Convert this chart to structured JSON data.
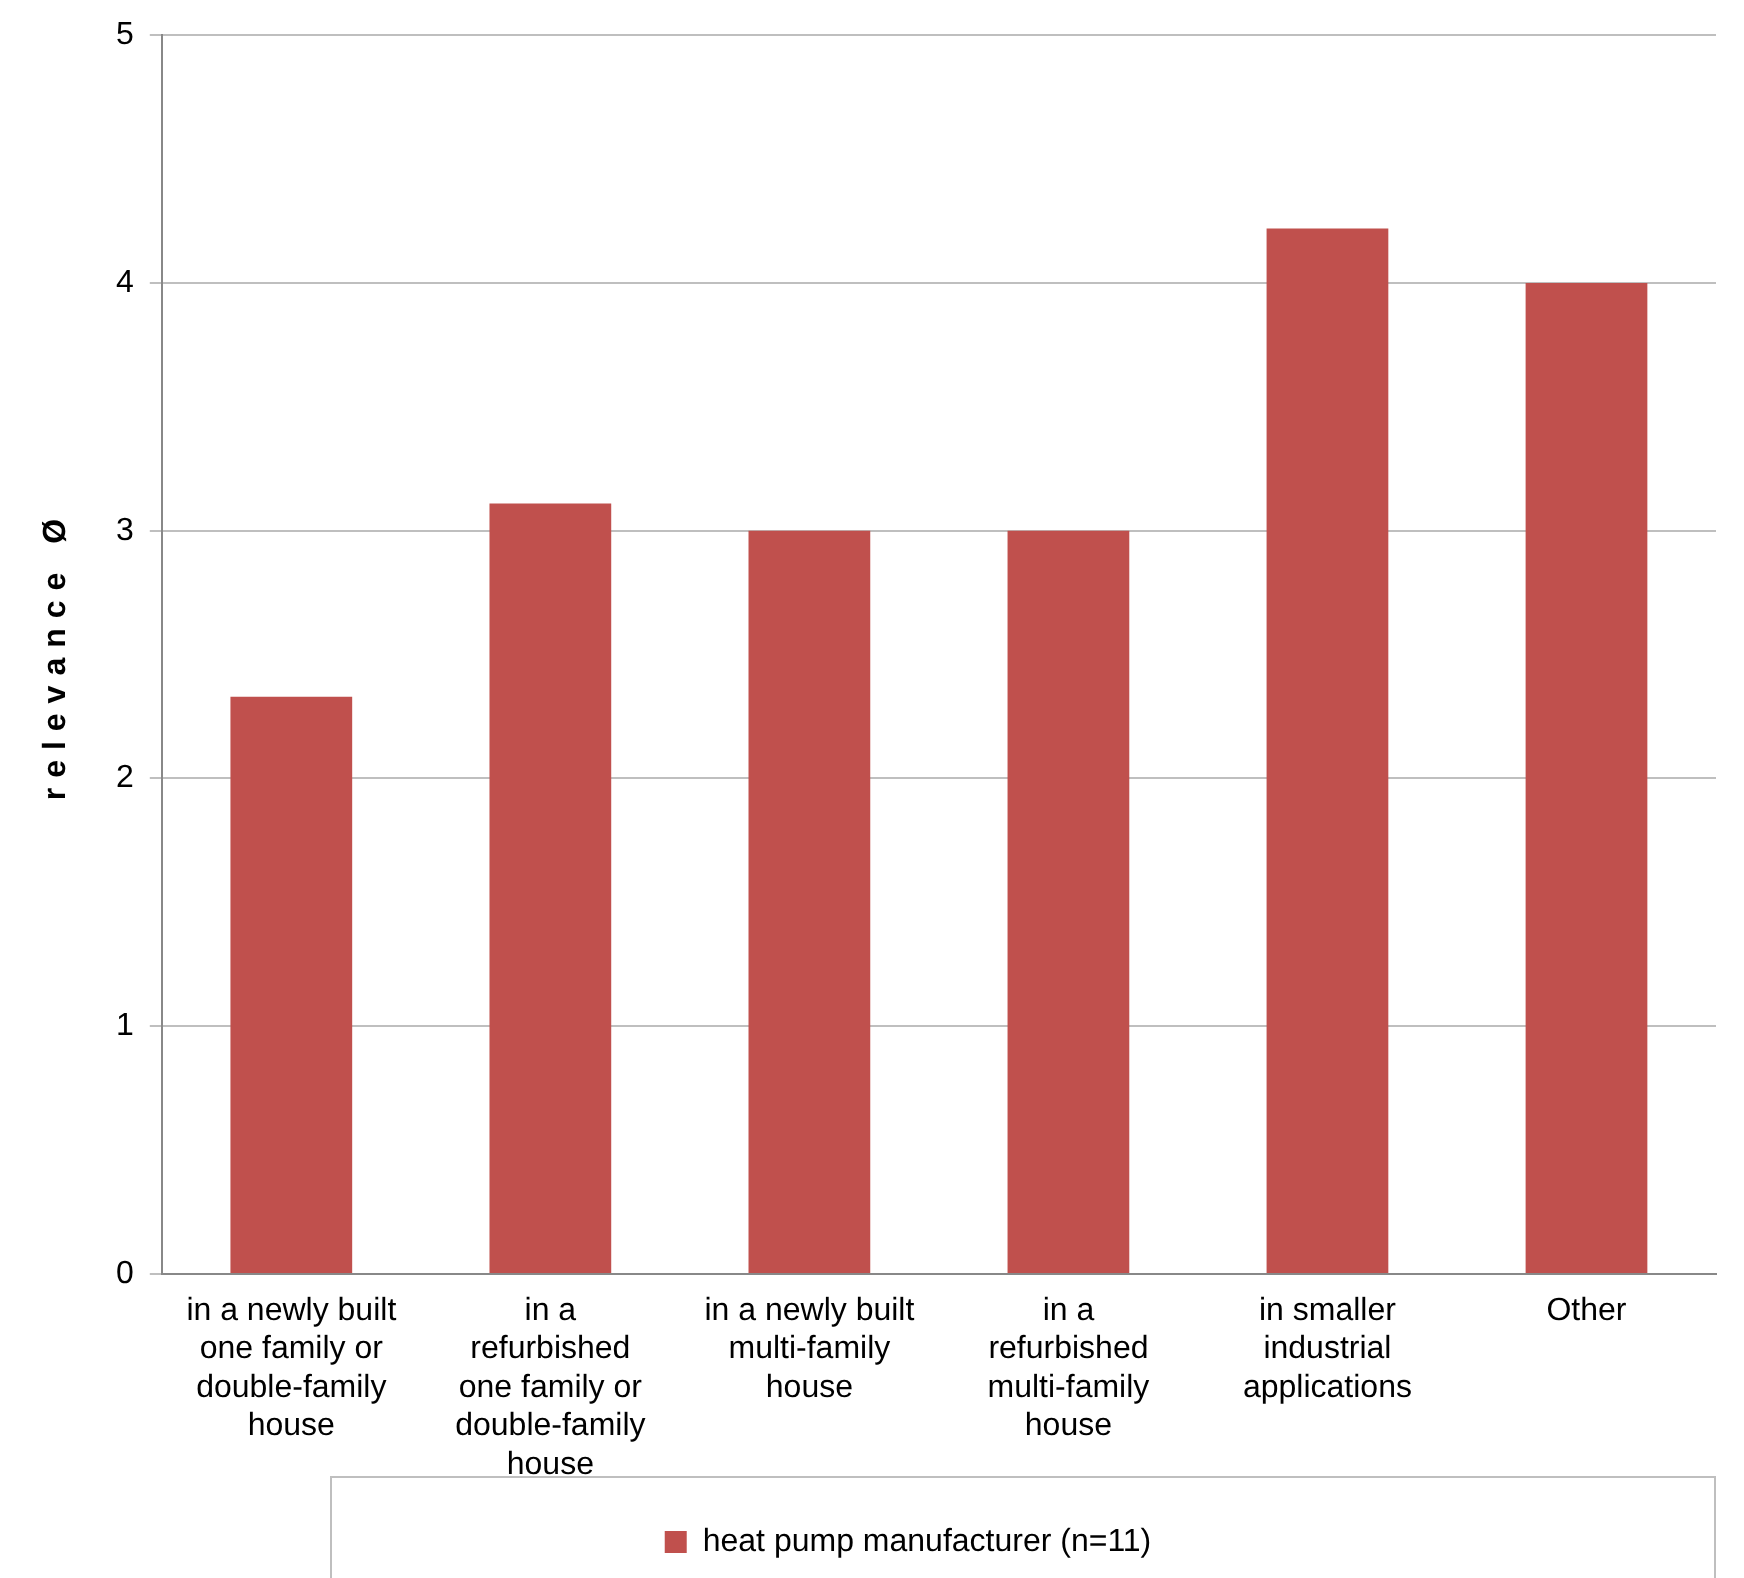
{
  "chart_data": {
    "type": "bar",
    "ylabel": "relevance Ø",
    "categories": [
      "in a newly built one family or double-family house",
      "in a refurbished one family or double-family house",
      "in a newly built multi-family house",
      "in a refurbished multi-family house",
      "in smaller industrial applications",
      "Other"
    ],
    "series": [
      {
        "name": "heat pump manufacturer (n=11)",
        "color": "#c0504d",
        "values": [
          2.33,
          3.11,
          3.0,
          3.0,
          4.22,
          4.0
        ]
      }
    ],
    "ylim": [
      0,
      5
    ],
    "yticks": [
      0,
      1,
      2,
      3,
      4,
      5
    ],
    "grid": "y",
    "legend": "bottom"
  }
}
